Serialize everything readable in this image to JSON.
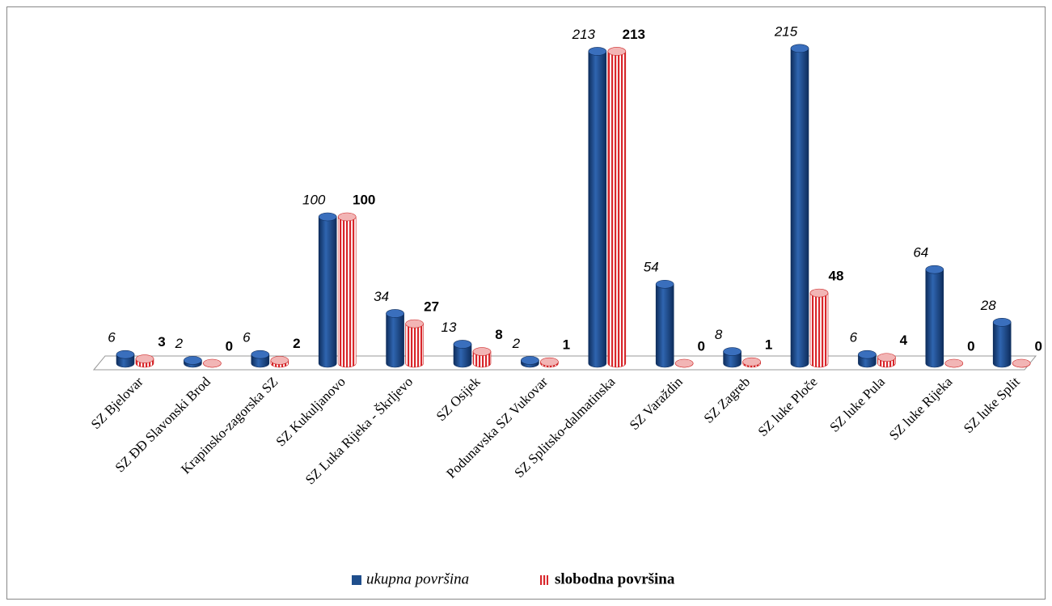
{
  "chart_data": {
    "type": "bar3d",
    "categories": [
      "SZ Bjelovar",
      "SZ ĐĐ Slavonski Brod",
      "Krapinsko-zagorska SZ",
      "SZ Kukuljanovo",
      "SZ Luka Rijeka - Škrljevo",
      "SZ Osijek",
      "Podunavska SZ Vukovar",
      "SZ Splitsko-dalmatinska",
      "SZ Varaždin",
      "SZ Zagreb",
      "SZ luke Ploče",
      "SZ luke Pula",
      "SZ luke Rijeka",
      "SZ luke Split"
    ],
    "series": [
      {
        "name": "ukupna površina",
        "color": "#1f4e8c",
        "values": [
          6,
          2,
          6,
          100,
          34,
          13,
          2,
          213,
          54,
          8,
          215,
          6,
          64,
          28
        ]
      },
      {
        "name": "slobodna površina",
        "color": "#d9262b",
        "values": [
          3,
          0,
          2,
          100,
          27,
          8,
          1,
          213,
          0,
          1,
          48,
          4,
          0,
          0
        ]
      }
    ],
    "legend": "bottom"
  }
}
